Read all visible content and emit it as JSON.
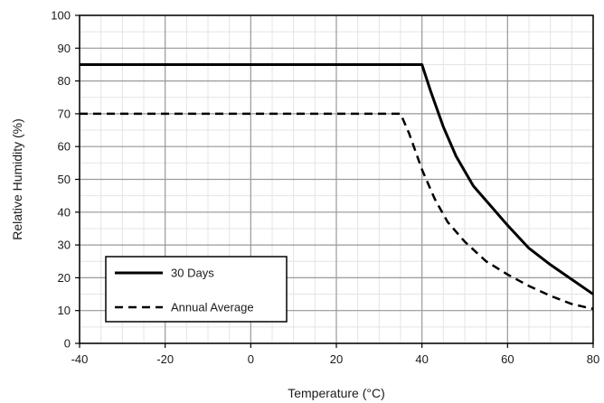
{
  "chart_data": {
    "type": "line",
    "xlabel": "Temperature (°C)",
    "ylabel": "Relative Humidity (%)",
    "xlim": [
      -40,
      80
    ],
    "ylim": [
      0,
      100
    ],
    "xticks": [
      -40,
      -20,
      0,
      20,
      40,
      60,
      80
    ],
    "yticks": [
      0,
      10,
      20,
      30,
      40,
      50,
      60,
      70,
      80,
      90,
      100
    ],
    "x_minor_step": 5,
    "y_minor_step": 5,
    "grid": true,
    "legend_position": "bottom-left",
    "series": [
      {
        "name": "30 Days",
        "line_style": "solid",
        "color": "#000000",
        "points": [
          [
            -40,
            85
          ],
          [
            40,
            85
          ],
          [
            42,
            77
          ],
          [
            45,
            66
          ],
          [
            48,
            57
          ],
          [
            52,
            48
          ],
          [
            56,
            42
          ],
          [
            60,
            36
          ],
          [
            65,
            29
          ],
          [
            70,
            24
          ],
          [
            75,
            19.5
          ],
          [
            80,
            15
          ]
        ]
      },
      {
        "name": "Annual Average",
        "line_style": "dashed",
        "color": "#000000",
        "points": [
          [
            -40,
            70
          ],
          [
            35,
            70
          ],
          [
            37,
            64
          ],
          [
            40,
            53
          ],
          [
            43,
            44
          ],
          [
            46,
            37
          ],
          [
            50,
            31
          ],
          [
            55,
            25
          ],
          [
            60,
            21
          ],
          [
            65,
            17.5
          ],
          [
            70,
            14.5
          ],
          [
            75,
            12
          ],
          [
            80,
            10.5
          ]
        ]
      }
    ]
  }
}
